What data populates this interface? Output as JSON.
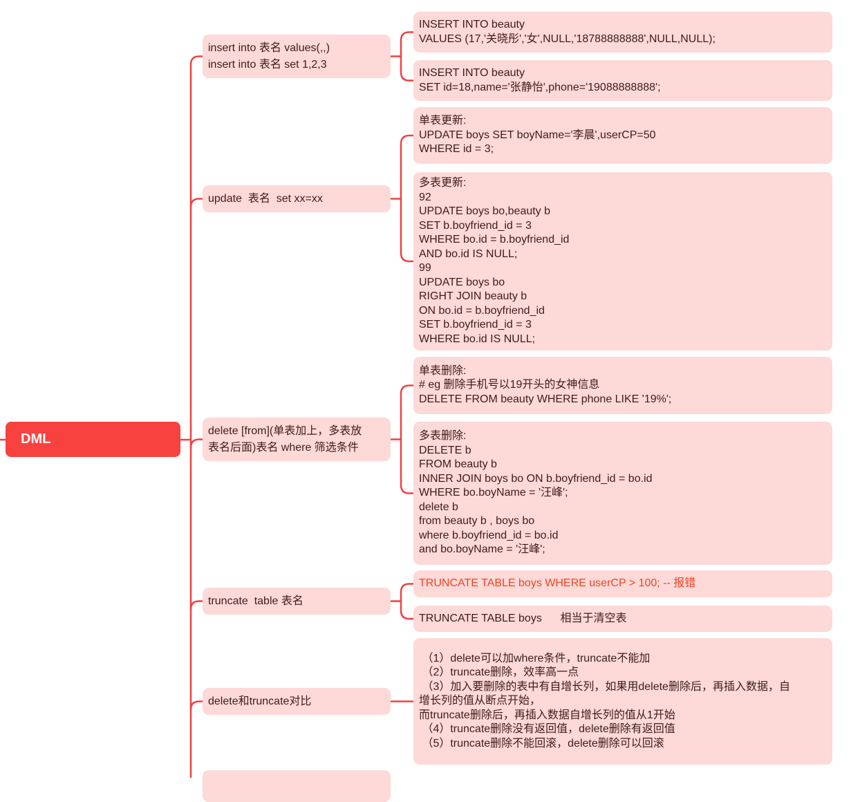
{
  "root": {
    "label": "DML"
  },
  "colors": {
    "root": "#f7423f",
    "node": "#fdd9d8",
    "line": "#f04040",
    "text": "#3b1d1a",
    "error_text": "#f5421f"
  },
  "branches": [
    {
      "label_lines": [
        "insert into 表名 values(,,)",
        "insert into 表名 set 1,2,3"
      ],
      "children": [
        {
          "lines": [
            "INSERT INTO beauty",
            "VALUES (17,'关晓彤','女',NULL,'18788888888',NULL,NULL);"
          ]
        },
        {
          "lines": [
            "INSERT INTO beauty",
            "SET id=18,name='张静怡',phone='19088888888';"
          ]
        }
      ]
    },
    {
      "label_lines": [
        "update  表名  set xx=xx"
      ],
      "children": [
        {
          "lines": [
            "单表更新:",
            "UPDATE boys SET boyName='李晨',userCP=50",
            "WHERE id = 3;"
          ]
        },
        {
          "lines": [
            "多表更新:",
            "92",
            "UPDATE boys bo,beauty b",
            "SET b.boyfriend_id = 3",
            "WHERE bo.id = b.boyfriend_id",
            "AND bo.id IS NULL;",
            "99",
            "UPDATE boys bo",
            "RIGHT JOIN beauty b",
            "ON bo.id = b.boyfriend_id",
            "SET b.boyfriend_id = 3",
            "WHERE bo.id IS NULL;"
          ]
        }
      ]
    },
    {
      "label_lines": [
        "delete [from](单表加上，多表放",
        "表名后面)表名 where 筛选条件"
      ],
      "children": [
        {
          "lines": [
            "单表删除:",
            "# eg 删除手机号以19开头的女神信息",
            "DELETE FROM beauty WHERE phone LIKE '19%';"
          ]
        },
        {
          "lines": [
            "多表删除:",
            "DELETE b",
            "FROM beauty b",
            "INNER JOIN boys bo ON b.boyfriend_id = bo.id",
            "WHERE bo.boyName = '汪峰';",
            "delete b",
            "from beauty b , boys bo",
            "where b.boyfriend_id = bo.id",
            "and bo.boyName = '汪峰';"
          ]
        }
      ]
    },
    {
      "label_lines": [
        "truncate  table 表名"
      ],
      "children": [
        {
          "lines": [
            "TRUNCATE TABLE boys WHERE userCP > 100; -- 报错"
          ],
          "error": true
        },
        {
          "lines": [
            "TRUNCATE TABLE boys      相当于清空表"
          ]
        }
      ]
    },
    {
      "label_lines": [
        "delete和truncate对比"
      ],
      "children": [
        {
          "lines": [
            " （1）delete可以加where条件，truncate不能加",
            " （2）truncate删除，效率高一点",
            " （3）加入要删除的表中有自增长列，如果用delete删除后，再插入数据，自",
            "增长列的值从断点开始，",
            "而truncate删除后，再插入数据自增长列的值从1开始",
            " （4）truncate删除没有返回值，delete删除有返回值",
            " （5）truncate删除不能回滚，delete删除可以回滚"
          ]
        }
      ]
    },
    {
      "label_lines": [],
      "children": []
    }
  ]
}
